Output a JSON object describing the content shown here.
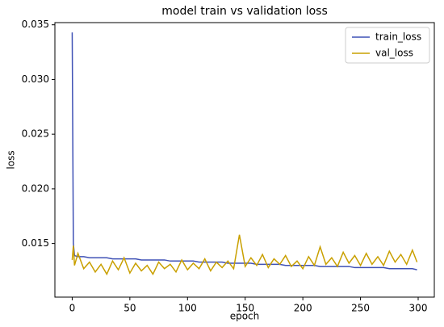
{
  "chart_data": {
    "type": "line",
    "title": "model train vs validation loss",
    "x_label": "epoch",
    "y_label": "loss",
    "x": [
      0,
      1,
      2,
      5,
      10,
      15,
      20,
      25,
      30,
      35,
      40,
      45,
      50,
      55,
      60,
      65,
      70,
      75,
      80,
      85,
      90,
      95,
      100,
      105,
      110,
      115,
      120,
      125,
      130,
      135,
      140,
      145,
      150,
      155,
      160,
      165,
      170,
      175,
      180,
      185,
      190,
      195,
      200,
      205,
      210,
      215,
      220,
      225,
      230,
      235,
      240,
      245,
      250,
      255,
      260,
      265,
      270,
      275,
      280,
      285,
      290,
      295,
      299
    ],
    "series": [
      {
        "name": "train_loss",
        "color": "#3f51b5",
        "values": [
          0.0343,
          0.015,
          0.0139,
          0.0138,
          0.0138,
          0.0137,
          0.0137,
          0.0137,
          0.0137,
          0.0136,
          0.0136,
          0.0136,
          0.0136,
          0.0136,
          0.0135,
          0.0135,
          0.0135,
          0.0135,
          0.0135,
          0.0134,
          0.0134,
          0.0134,
          0.0134,
          0.0134,
          0.0133,
          0.0133,
          0.0133,
          0.0133,
          0.0133,
          0.0132,
          0.0132,
          0.0132,
          0.0132,
          0.0132,
          0.0131,
          0.0131,
          0.0131,
          0.0131,
          0.0131,
          0.013,
          0.013,
          0.013,
          0.013,
          0.013,
          0.013,
          0.0129,
          0.0129,
          0.0129,
          0.0129,
          0.0129,
          0.0129,
          0.0128,
          0.0128,
          0.0128,
          0.0128,
          0.0128,
          0.0128,
          0.0127,
          0.0127,
          0.0127,
          0.0127,
          0.0127,
          0.0126
        ]
      },
      {
        "name": "val_loss",
        "color": "#c9a000",
        "values": [
          0.0135,
          0.0148,
          0.013,
          0.0141,
          0.0127,
          0.0133,
          0.0124,
          0.0131,
          0.0122,
          0.0134,
          0.0126,
          0.0137,
          0.0123,
          0.0132,
          0.0125,
          0.013,
          0.0122,
          0.0133,
          0.0127,
          0.0131,
          0.0124,
          0.0135,
          0.0126,
          0.0132,
          0.0127,
          0.0136,
          0.0125,
          0.0133,
          0.0128,
          0.0134,
          0.0127,
          0.0158,
          0.0129,
          0.0137,
          0.013,
          0.014,
          0.0128,
          0.0136,
          0.0131,
          0.0139,
          0.0129,
          0.0134,
          0.0127,
          0.0138,
          0.013,
          0.0147,
          0.0131,
          0.0137,
          0.0129,
          0.0142,
          0.0132,
          0.0139,
          0.013,
          0.0141,
          0.0131,
          0.0138,
          0.013,
          0.0143,
          0.0133,
          0.014,
          0.0131,
          0.0144,
          0.0133
        ]
      }
    ],
    "xlim": [
      -15,
      314
    ],
    "ylim": [
      0.0101,
      0.0352
    ],
    "xticks": [
      0,
      50,
      100,
      150,
      200,
      250,
      300
    ],
    "yticks": [
      0.015,
      {
        "value": 0.02,
        "label": "0.020"
      },
      0.025,
      {
        "value": 0.03,
        "label": "0.030"
      },
      0.035
    ],
    "legend": "upper right"
  }
}
